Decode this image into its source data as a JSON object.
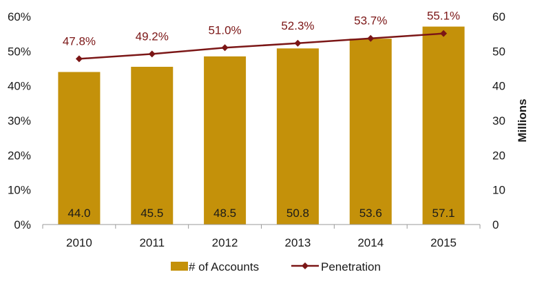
{
  "chart_data": {
    "type": "bar",
    "categories": [
      "2010",
      "2011",
      "2012",
      "2013",
      "2014",
      "2015"
    ],
    "series": [
      {
        "name": "# of Accounts",
        "type": "bar",
        "axis": "right",
        "values": [
          44.0,
          45.5,
          48.5,
          50.8,
          53.6,
          57.1
        ],
        "labels": [
          "44.0",
          "45.5",
          "48.5",
          "50.8",
          "53.6",
          "57.1"
        ],
        "color": "#C4910A"
      },
      {
        "name": "Penetration",
        "type": "line",
        "axis": "left",
        "values": [
          47.8,
          49.2,
          51.0,
          52.3,
          53.7,
          55.1
        ],
        "labels": [
          "47.8%",
          "49.2%",
          "51.0%",
          "52.3%",
          "53.7%",
          "55.1%"
        ],
        "color": "#7B1616"
      }
    ],
    "left_axis": {
      "ylim": [
        0,
        60
      ],
      "ticks": [
        "0%",
        "10%",
        "20%",
        "30%",
        "40%",
        "50%",
        "60%"
      ]
    },
    "right_axis": {
      "label": "Millions",
      "ylim": [
        0,
        60
      ],
      "ticks": [
        "0",
        "10",
        "20",
        "30",
        "40",
        "50",
        "60"
      ]
    },
    "grid": false,
    "legend_position": "bottom"
  }
}
